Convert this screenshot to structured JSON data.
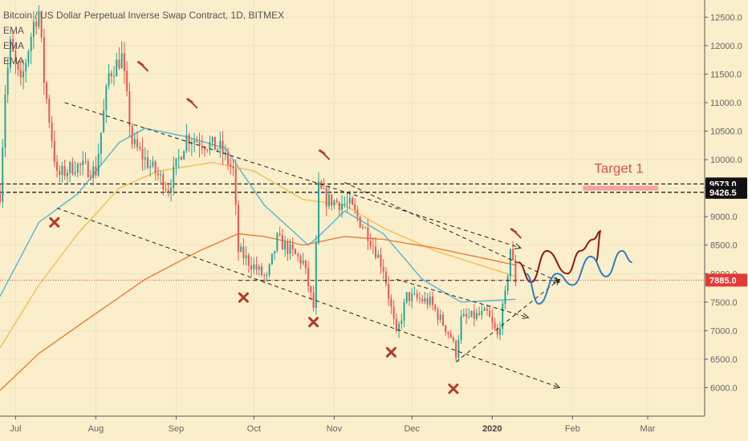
{
  "header": {
    "title": "Bitcoin / US Dollar Perpetual Inverse Swap Contract, 1D, BITMEX",
    "legend": [
      "EMA",
      "EMA",
      "EMA"
    ]
  },
  "colors": {
    "background": "#fbeecb",
    "up_candle": "#26a69a",
    "down_candle": "#ef5350",
    "ema_fast": "#4fb6d6",
    "ema_mid": "#f2c14e",
    "ema_slow": "#f07c3c",
    "current_price": "#e53935",
    "level_tag": "#111111",
    "marker": "#b23a2a",
    "projection_red": "#8b1a1a",
    "projection_blue": "#2a7fc4",
    "target_band": "#f0a3a3"
  },
  "chart_data": {
    "type": "candlestick",
    "title": "Bitcoin / US Dollar Perpetual Inverse Swap Contract, 1D, BITMEX",
    "xlabel": "",
    "ylabel": "",
    "x_ticks": [
      {
        "label": "Jul",
        "date": "2019-07-01"
      },
      {
        "label": "Aug",
        "date": "2019-08-01"
      },
      {
        "label": "Sep",
        "date": "2019-09-01"
      },
      {
        "label": "Oct",
        "date": "2019-10-01"
      },
      {
        "label": "Nov",
        "date": "2019-11-01"
      },
      {
        "label": "Dec",
        "date": "2019-12-01"
      },
      {
        "label": "2020",
        "date": "2020-01-01",
        "bold": true
      },
      {
        "label": "Feb",
        "date": "2020-02-01"
      },
      {
        "label": "Mar",
        "date": "2020-03-01"
      }
    ],
    "x_range": [
      "2019-06-25",
      "2020-03-23"
    ],
    "ylim": [
      5500,
      12800
    ],
    "y_ticks": [
      6000,
      6500,
      7000,
      7500,
      8000,
      8500,
      9000,
      9500,
      10000,
      10500,
      11000,
      11500,
      12000,
      12500
    ],
    "y_tick_labels": [
      "6000.0",
      "6500.0",
      "7000.0",
      "7500.0",
      "8000.0",
      "8500.0",
      "9000.0",
      "9500.0",
      "10000.0",
      "10500.0",
      "11000.0",
      "11500.0",
      "12000.0",
      "12500.0"
    ],
    "current_price": {
      "value": 7885.0,
      "label": "7885.0"
    },
    "levels": [
      {
        "value": 9573.0,
        "label": "9573.0"
      },
      {
        "value": 9426.5,
        "label": "9426.5"
      }
    ],
    "target": {
      "label": "Target 1",
      "value": 9500,
      "from": "2020-02-05",
      "to": "2020-03-05"
    },
    "anchors": [
      {
        "date": "2019-06-25",
        "close": 9400
      },
      {
        "date": "2019-06-27",
        "close": 11200
      },
      {
        "date": "2019-06-29",
        "close": 12000
      },
      {
        "date": "2019-07-03",
        "close": 11300
      },
      {
        "date": "2019-07-08",
        "close": 12400
      },
      {
        "date": "2019-07-10",
        "close": 12600
      },
      {
        "date": "2019-07-12",
        "close": 11400
      },
      {
        "date": "2019-07-17",
        "close": 9700
      },
      {
        "date": "2019-07-24",
        "close": 9900
      },
      {
        "date": "2019-08-01",
        "close": 9800
      },
      {
        "date": "2019-08-06",
        "close": 11500
      },
      {
        "date": "2019-08-11",
        "close": 11800
      },
      {
        "date": "2019-08-15",
        "close": 10300
      },
      {
        "date": "2019-08-20",
        "close": 10000
      },
      {
        "date": "2019-08-29",
        "close": 9500
      },
      {
        "date": "2019-09-05",
        "close": 10400
      },
      {
        "date": "2019-09-18",
        "close": 10200
      },
      {
        "date": "2019-09-23",
        "close": 9800
      },
      {
        "date": "2019-09-25",
        "close": 8400
      },
      {
        "date": "2019-10-06",
        "close": 7900
      },
      {
        "date": "2019-10-10",
        "close": 8600
      },
      {
        "date": "2019-10-20",
        "close": 8200
      },
      {
        "date": "2019-10-24",
        "close": 7400
      },
      {
        "date": "2019-10-26",
        "close": 9500
      },
      {
        "date": "2019-10-29",
        "close": 9300
      },
      {
        "date": "2019-11-07",
        "close": 9200
      },
      {
        "date": "2019-11-14",
        "close": 8700
      },
      {
        "date": "2019-11-20",
        "close": 8100
      },
      {
        "date": "2019-11-25",
        "close": 6900
      },
      {
        "date": "2019-11-29",
        "close": 7600
      },
      {
        "date": "2019-12-08",
        "close": 7500
      },
      {
        "date": "2019-12-16",
        "close": 6900
      },
      {
        "date": "2019-12-18",
        "close": 6600
      },
      {
        "date": "2019-12-20",
        "close": 7200
      },
      {
        "date": "2019-12-30",
        "close": 7300
      },
      {
        "date": "2020-01-03",
        "close": 6900
      },
      {
        "date": "2020-01-06",
        "close": 7600
      },
      {
        "date": "2020-01-08",
        "close": 8450
      },
      {
        "date": "2020-01-10",
        "close": 7885
      }
    ],
    "series": [
      {
        "name": "EMA",
        "role": "fast",
        "values": [
          {
            "date": "2019-06-25",
            "value": 7600
          },
          {
            "date": "2019-07-10",
            "value": 8900
          },
          {
            "date": "2019-07-25",
            "value": 9400
          },
          {
            "date": "2019-08-10",
            "value": 10300
          },
          {
            "date": "2019-08-20",
            "value": 10550
          },
          {
            "date": "2019-09-05",
            "value": 10400
          },
          {
            "date": "2019-09-20",
            "value": 10200
          },
          {
            "date": "2019-10-05",
            "value": 9200
          },
          {
            "date": "2019-10-22",
            "value": 8500
          },
          {
            "date": "2019-10-26",
            "value": 8650
          },
          {
            "date": "2019-11-05",
            "value": 9100
          },
          {
            "date": "2019-11-20",
            "value": 8700
          },
          {
            "date": "2019-12-05",
            "value": 7900
          },
          {
            "date": "2019-12-20",
            "value": 7500
          },
          {
            "date": "2020-01-10",
            "value": 7550
          }
        ]
      },
      {
        "name": "EMA",
        "role": "mid",
        "values": [
          {
            "date": "2019-06-25",
            "value": 6700
          },
          {
            "date": "2019-07-10",
            "value": 7800
          },
          {
            "date": "2019-07-25",
            "value": 8700
          },
          {
            "date": "2019-08-10",
            "value": 9500
          },
          {
            "date": "2019-08-25",
            "value": 9800
          },
          {
            "date": "2019-09-15",
            "value": 9950
          },
          {
            "date": "2019-10-01",
            "value": 9800
          },
          {
            "date": "2019-10-20",
            "value": 9300
          },
          {
            "date": "2019-11-05",
            "value": 9200
          },
          {
            "date": "2019-11-20",
            "value": 8800
          },
          {
            "date": "2019-12-10",
            "value": 8400
          },
          {
            "date": "2020-01-10",
            "value": 7950
          }
        ]
      },
      {
        "name": "EMA",
        "role": "slow",
        "values": [
          {
            "date": "2019-06-25",
            "value": 5950
          },
          {
            "date": "2019-07-10",
            "value": 6600
          },
          {
            "date": "2019-08-01",
            "value": 7300
          },
          {
            "date": "2019-08-20",
            "value": 7900
          },
          {
            "date": "2019-09-10",
            "value": 8400
          },
          {
            "date": "2019-09-25",
            "value": 8700
          },
          {
            "date": "2019-10-05",
            "value": 8650
          },
          {
            "date": "2019-10-20",
            "value": 8500
          },
          {
            "date": "2019-11-05",
            "value": 8650
          },
          {
            "date": "2019-11-20",
            "value": 8600
          },
          {
            "date": "2019-12-10",
            "value": 8450
          },
          {
            "date": "2020-01-10",
            "value": 8150
          }
        ]
      }
    ],
    "trendlines": [
      {
        "from": {
          "date": "2019-07-20",
          "value": 11000
        },
        "to": {
          "date": "2020-01-12",
          "value": 8450
        }
      },
      {
        "from": {
          "date": "2019-07-17",
          "value": 9150
        },
        "to": {
          "date": "2020-01-27",
          "value": 6000
        }
      },
      {
        "from": {
          "date": "2019-09-25",
          "value": 7880
        },
        "to": {
          "date": "2020-01-27",
          "value": 7880
        }
      },
      {
        "from": {
          "date": "2019-12-18",
          "value": 6450
        },
        "to": {
          "date": "2020-01-27",
          "value": 7900
        }
      },
      {
        "from": {
          "date": "2019-11-05",
          "value": 9600
        },
        "to": {
          "date": "2020-01-27",
          "value": 7850
        }
      },
      {
        "from": {
          "date": "2019-11-25",
          "value": 7900
        },
        "to": {
          "date": "2020-01-15",
          "value": 7230
        }
      }
    ],
    "markers": [
      {
        "kind": "hammer",
        "date": "2019-08-19",
        "value": 11650
      },
      {
        "kind": "hammer",
        "date": "2019-09-07",
        "value": 11000
      },
      {
        "kind": "hammer",
        "date": "2019-10-28",
        "value": 10100
      },
      {
        "kind": "hammer",
        "date": "2020-01-10",
        "value": 8720
      },
      {
        "kind": "cross",
        "date": "2019-07-16",
        "value": 8900
      },
      {
        "kind": "cross",
        "date": "2019-09-27",
        "value": 7580
      },
      {
        "kind": "cross",
        "date": "2019-10-24",
        "value": 7150
      },
      {
        "kind": "cross",
        "date": "2019-11-23",
        "value": 6620
      },
      {
        "kind": "cross",
        "date": "2019-12-17",
        "value": 5980
      }
    ],
    "projections": [
      {
        "color": "red",
        "points": [
          {
            "date": "2020-01-11",
            "value": 8200
          },
          {
            "date": "2020-01-16",
            "value": 7850
          },
          {
            "date": "2020-01-22",
            "value": 8400
          },
          {
            "date": "2020-01-30",
            "value": 8000
          },
          {
            "date": "2020-02-04",
            "value": 8400
          },
          {
            "date": "2020-02-09",
            "value": 8600
          },
          {
            "date": "2020-02-12",
            "value": 8750
          },
          {
            "date": "2020-02-10",
            "value": 8200
          }
        ]
      },
      {
        "color": "blue",
        "points": [
          {
            "date": "2020-01-14",
            "value": 8000
          },
          {
            "date": "2020-01-19",
            "value": 7470
          },
          {
            "date": "2020-01-26",
            "value": 8000
          },
          {
            "date": "2020-02-01",
            "value": 7800
          },
          {
            "date": "2020-02-08",
            "value": 8300
          },
          {
            "date": "2020-02-14",
            "value": 7950
          },
          {
            "date": "2020-02-20",
            "value": 8400
          },
          {
            "date": "2020-02-24",
            "value": 8200
          }
        ]
      }
    ]
  }
}
